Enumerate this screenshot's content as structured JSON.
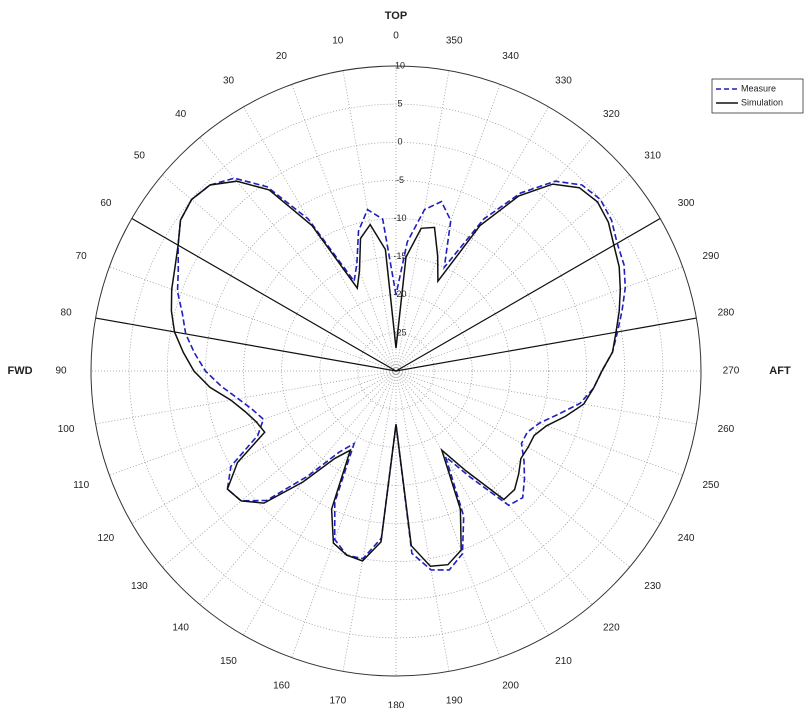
{
  "chart_data": {
    "type": "polar",
    "annotations": {
      "top": "TOP",
      "fwd": "FWD",
      "aft": "AFT"
    },
    "theta": [
      0,
      5,
      10,
      15,
      20,
      25,
      30,
      35,
      40,
      45,
      50,
      55,
      60,
      65,
      70,
      75,
      80,
      85,
      90,
      95,
      100,
      105,
      110,
      115,
      120,
      125,
      130,
      135,
      140,
      145,
      150,
      155,
      160,
      165,
      170,
      175,
      180,
      185,
      190,
      195,
      200,
      205,
      210,
      215,
      220,
      225,
      230,
      235,
      240,
      245,
      250,
      255,
      260,
      265,
      270,
      275,
      280,
      285,
      290,
      295,
      300,
      305,
      310,
      315,
      320,
      325,
      330,
      335,
      340,
      345,
      350,
      355
    ],
    "series": [
      {
        "name": "Measure",
        "color": "#1f1fbf",
        "dashed": true,
        "values": [
          -20,
          -10,
          -8.5,
          -11,
          -15,
          -17,
          -7,
          -0.5,
          3,
          4.5,
          5,
          4.5,
          3,
          1.5,
          0.5,
          -1,
          -2,
          -3.5,
          -5,
          -7,
          -9,
          -10.5,
          -11.5,
          -10,
          -5,
          -3,
          -3.5,
          -6,
          -12,
          -17,
          -19,
          -11,
          -6.5,
          -5,
          -5,
          -8,
          -23,
          -6,
          -3.5,
          -3,
          -4.5,
          -9,
          -17,
          -13,
          -7,
          -6.5,
          -8,
          -9.5,
          -11,
          -11,
          -10,
          -8,
          -5.5,
          -4,
          -3,
          -1.5,
          -0.5,
          0.7,
          2,
          3,
          3.5,
          4.5,
          5,
          4.5,
          2.5,
          -1.5,
          -7,
          -15,
          -9,
          -7,
          -8.5,
          -13
        ]
      },
      {
        "name": "Simulation",
        "color": "#111111",
        "dashed": false,
        "values": [
          -27,
          -14,
          -10.5,
          -12,
          -16,
          -18,
          -8,
          -1,
          2.5,
          4.5,
          5,
          4.5,
          3,
          2,
          1.3,
          0.5,
          -0.5,
          -2,
          -3.5,
          -5.5,
          -8,
          -9.5,
          -10.5,
          -11,
          -6,
          -3,
          -3.5,
          -5.5,
          -11,
          -16,
          -18,
          -10,
          -6,
          -5,
          -4.7,
          -7.5,
          -23,
          -7,
          -4,
          -3.7,
          -5,
          -10,
          -18,
          -14,
          -8,
          -8,
          -9,
          -10,
          -10,
          -10,
          -9,
          -7,
          -5,
          -4,
          -3,
          -1.5,
          -0.7,
          0.3,
          1.3,
          2.3,
          3,
          4,
          4.5,
          4,
          2,
          -2,
          -8,
          -17,
          -14,
          -10.5,
          -11,
          -15
        ]
      }
    ],
    "rlim": [
      -30,
      10
    ],
    "rticks": [
      -25,
      -20,
      -15,
      -10,
      -5,
      0,
      5,
      10
    ],
    "thetaticks": [
      0,
      10,
      20,
      30,
      40,
      50,
      60,
      70,
      80,
      90,
      100,
      110,
      120,
      130,
      140,
      150,
      160,
      170,
      180,
      190,
      200,
      210,
      220,
      230,
      240,
      250,
      260,
      270,
      280,
      290,
      300,
      310,
      320,
      330,
      340,
      350
    ],
    "sector_lines": [
      60,
      80,
      280,
      300
    ],
    "grid": true,
    "legend": "upper right"
  }
}
